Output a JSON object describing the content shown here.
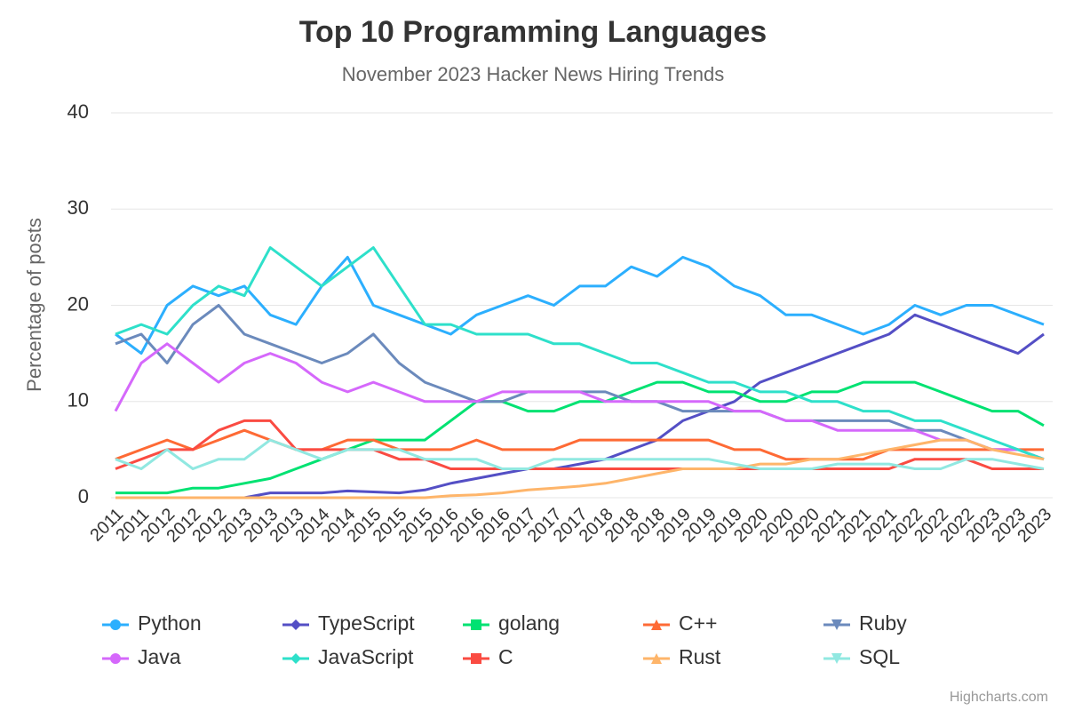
{
  "chart_data": {
    "type": "line",
    "title": "Top 10 Programming Languages",
    "subtitle": "November 2023 Hacker News Hiring Trends",
    "y_label": "Percentage of posts",
    "credits": "Highcharts.com",
    "categories": [
      "2011",
      "2011",
      "2012",
      "2012",
      "2012",
      "2013",
      "2013",
      "2013",
      "2014",
      "2014",
      "2015",
      "2015",
      "2015",
      "2016",
      "2016",
      "2016",
      "2017",
      "2017",
      "2017",
      "2018",
      "2018",
      "2018",
      "2019",
      "2019",
      "2019",
      "2020",
      "2020",
      "2020",
      "2021",
      "2021",
      "2021",
      "2022",
      "2022",
      "2022",
      "2023",
      "2023",
      "2023"
    ],
    "ylim": [
      0,
      40
    ],
    "yticks": [
      0,
      10,
      20,
      30,
      40
    ],
    "grid": true,
    "series": [
      {
        "name": "Python",
        "color": "#2caffe",
        "symbol": "circle",
        "values": [
          17,
          15,
          20,
          22,
          21,
          22,
          19,
          18,
          22,
          25,
          20,
          19,
          18,
          17,
          19,
          20,
          21,
          20,
          22,
          22,
          24,
          23,
          25,
          24,
          22,
          21,
          19,
          19,
          18,
          17,
          18,
          20,
          19,
          20,
          20,
          19,
          18
        ]
      },
      {
        "name": "TypeScript",
        "color": "#544fc5",
        "symbol": "diamond",
        "values": [
          0,
          0,
          0,
          0,
          0,
          0,
          0.5,
          0.5,
          0.5,
          0.7,
          0.6,
          0.5,
          0.8,
          1.5,
          2,
          2.5,
          3,
          3,
          3.5,
          4,
          5,
          6,
          8,
          9,
          10,
          12,
          13,
          14,
          15,
          16,
          17,
          19,
          18,
          17,
          16,
          15,
          17
        ]
      },
      {
        "name": "golang",
        "color": "#00e272",
        "symbol": "square",
        "values": [
          0.5,
          0.5,
          0.5,
          1,
          1,
          1.5,
          2,
          3,
          4,
          5,
          6,
          6,
          6,
          8,
          10,
          10,
          9,
          9,
          10,
          10,
          11,
          12,
          12,
          11,
          11,
          10,
          10,
          11,
          11,
          12,
          12,
          12,
          11,
          10,
          9,
          9,
          7.5
        ]
      },
      {
        "name": "C++",
        "color": "#fe6a35",
        "symbol": "triangle",
        "values": [
          4,
          5,
          6,
          5,
          6,
          7,
          6,
          5,
          5,
          6,
          6,
          5,
          5,
          5,
          6,
          5,
          5,
          5,
          6,
          6,
          6,
          6,
          6,
          6,
          5,
          5,
          4,
          4,
          4,
          4,
          5,
          5,
          5,
          5,
          5,
          5,
          5
        ]
      },
      {
        "name": "Ruby",
        "color": "#6b8abc",
        "symbol": "triangle-down",
        "values": [
          16,
          17,
          14,
          18,
          20,
          17,
          16,
          15,
          14,
          15,
          17,
          14,
          12,
          11,
          10,
          10,
          11,
          11,
          11,
          11,
          10,
          10,
          9,
          9,
          9,
          9,
          8,
          8,
          8,
          8,
          8,
          7,
          7,
          6,
          5,
          5,
          4
        ]
      },
      {
        "name": "Java",
        "color": "#d568fb",
        "symbol": "circle",
        "values": [
          9,
          14,
          16,
          14,
          12,
          14,
          15,
          14,
          12,
          11,
          12,
          11,
          10,
          10,
          10,
          11,
          11,
          11,
          11,
          10,
          10,
          10,
          10,
          10,
          9,
          9,
          8,
          8,
          7,
          7,
          7,
          7,
          6,
          6,
          5,
          5,
          4
        ]
      },
      {
        "name": "JavaScript",
        "color": "#2ee0ca",
        "symbol": "diamond",
        "values": [
          17,
          18,
          17,
          20,
          22,
          21,
          26,
          24,
          22,
          24,
          26,
          22,
          18,
          18,
          17,
          17,
          17,
          16,
          16,
          15,
          14,
          14,
          13,
          12,
          12,
          11,
          11,
          10,
          10,
          9,
          9,
          8,
          8,
          7,
          6,
          5,
          4
        ]
      },
      {
        "name": "C",
        "color": "#fa4b42",
        "symbol": "square",
        "values": [
          3,
          4,
          5,
          5,
          7,
          8,
          8,
          5,
          5,
          5,
          5,
          4,
          4,
          3,
          3,
          3,
          3,
          3,
          3,
          3,
          3,
          3,
          3,
          3,
          3,
          3,
          3,
          3,
          3,
          3,
          3,
          4,
          4,
          4,
          3,
          3,
          3
        ]
      },
      {
        "name": "Rust",
        "color": "#feb56a",
        "symbol": "triangle",
        "values": [
          0,
          0,
          0,
          0,
          0,
          0,
          0,
          0,
          0,
          0,
          0,
          0,
          0,
          0.2,
          0.3,
          0.5,
          0.8,
          1,
          1.2,
          1.5,
          2,
          2.5,
          3,
          3,
          3,
          3.5,
          3.5,
          4,
          4,
          4.5,
          5,
          5.5,
          6,
          6,
          5,
          4.5,
          4
        ]
      },
      {
        "name": "SQL",
        "color": "#91e8e1",
        "symbol": "triangle-down",
        "values": [
          4,
          3,
          5,
          3,
          4,
          4,
          6,
          5,
          4,
          5,
          5,
          5,
          4,
          4,
          4,
          3,
          3,
          4,
          4,
          4,
          4,
          4,
          4,
          4,
          3.5,
          3,
          3,
          3,
          3.5,
          3.5,
          3.5,
          3,
          3,
          4,
          4,
          3.5,
          3
        ]
      }
    ]
  }
}
